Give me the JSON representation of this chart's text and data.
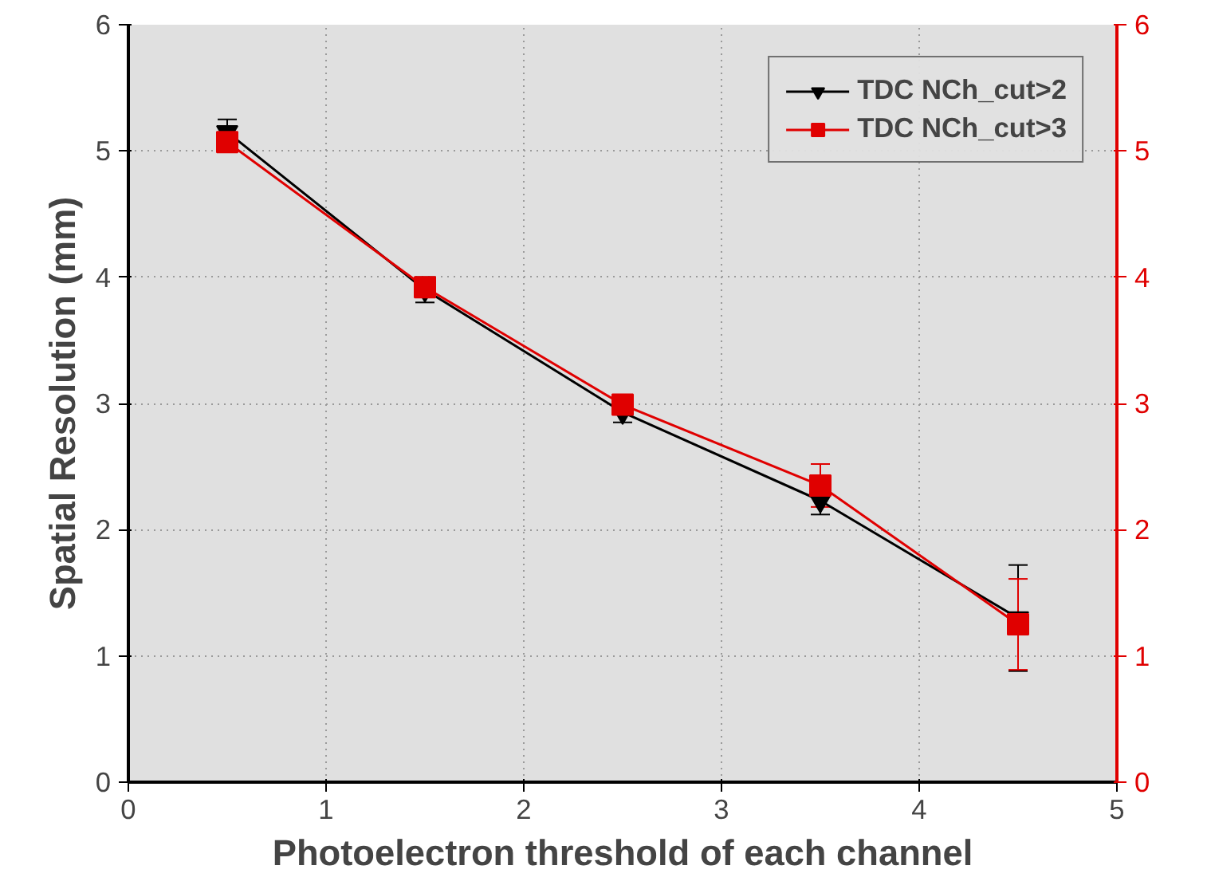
{
  "chart_data": {
    "type": "line",
    "xlabel": "Photoelectron threshold of each channel",
    "ylabel": "Spatial Resolution (mm)",
    "x": [
      0.5,
      1.5,
      2.5,
      3.5,
      4.5
    ],
    "series": [
      {
        "name": "TDC NCh_cut>2",
        "color": "#000000",
        "marker": "triangle",
        "values": [
          5.15,
          3.9,
          2.93,
          2.23,
          1.3
        ],
        "errors": [
          0.1,
          0.1,
          0.08,
          0.11,
          0.42
        ]
      },
      {
        "name": "TDC NCh_cut>3",
        "color": "#e00000",
        "marker": "square",
        "values": [
          5.07,
          3.92,
          2.99,
          2.35,
          1.25
        ],
        "errors": [
          0.05,
          0.05,
          0.05,
          0.17,
          0.36
        ]
      }
    ],
    "xlim": [
      0,
      5
    ],
    "xticks": [
      0,
      1,
      2,
      3,
      4,
      5
    ],
    "ylim": [
      0,
      6
    ],
    "yticks": [
      0,
      1,
      2,
      3,
      4,
      5,
      6
    ],
    "y2lim": [
      0,
      6
    ],
    "y2ticks": [
      0,
      1,
      2,
      3,
      4,
      5,
      6
    ],
    "grid": true,
    "legend": "top right",
    "line_style": "solid"
  }
}
